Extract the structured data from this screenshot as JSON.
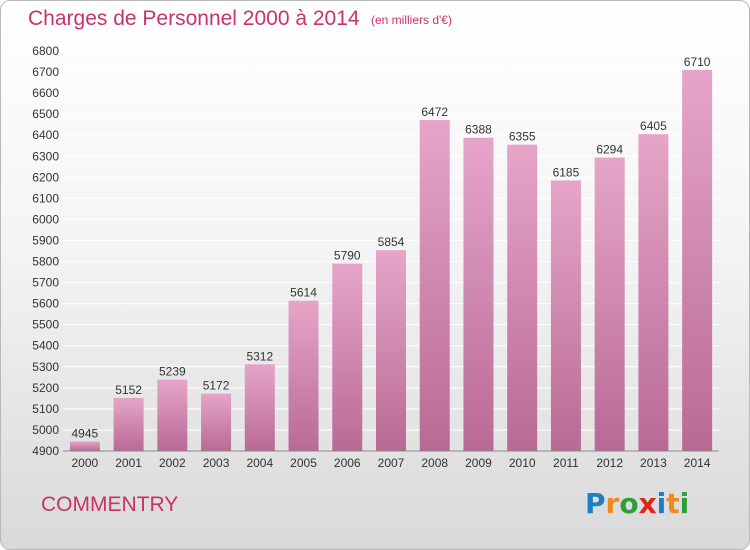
{
  "header": {
    "title": "Charges de Personnel 2000 à 2014",
    "unit": "(en milliers d'€)"
  },
  "footer": {
    "city": "COMMENTRY",
    "logo_letters": [
      "P",
      "r",
      "o",
      "x",
      "i",
      "t",
      "i"
    ],
    "logo_colors": [
      "#1f7fc4",
      "#f08a1c",
      "#2d9f3a",
      "#e0231b",
      "#1f7fc4",
      "#f08a1c",
      "#2d9f3a"
    ]
  },
  "colors": {
    "title": "#c8336a",
    "bar_top": "#e6a5c8",
    "bar_bottom": "#b86a95",
    "grid": "#ffffff"
  },
  "chart_data": {
    "type": "bar",
    "title": "Charges de Personnel 2000 à 2014",
    "categories": [
      "2000",
      "2001",
      "2002",
      "2003",
      "2004",
      "2005",
      "2006",
      "2007",
      "2008",
      "2009",
      "2010",
      "2011",
      "2012",
      "2013",
      "2014"
    ],
    "values": [
      4945,
      5152,
      5239,
      5172,
      5312,
      5614,
      5790,
      5854,
      6472,
      6388,
      6355,
      6185,
      6294,
      6405,
      6710
    ],
    "ylim": [
      4900,
      6800
    ],
    "ytick_step": 100,
    "grid": true
  }
}
